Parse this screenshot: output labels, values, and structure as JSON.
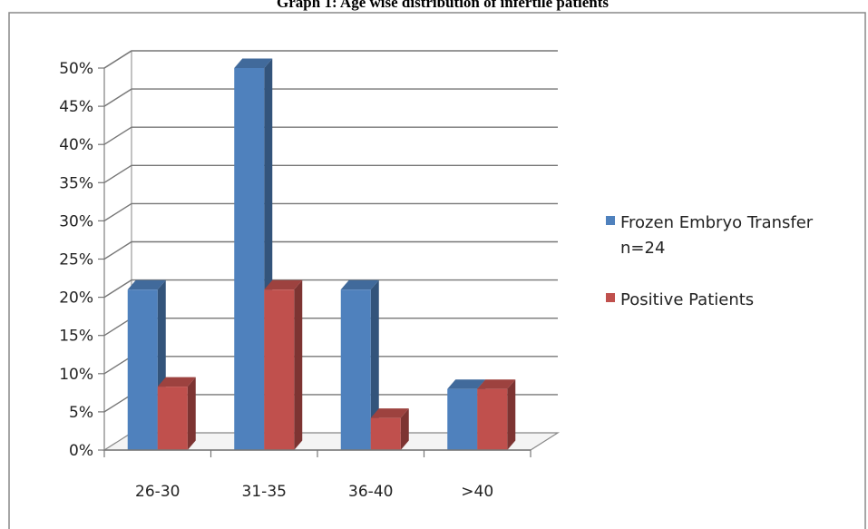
{
  "chart_data": {
    "type": "bar",
    "title": "Graph 1: Age wise distribution of infertile patients",
    "categories": [
      "26-30",
      "31-35",
      "36-40",
      ">40"
    ],
    "series": [
      {
        "name": "Frozen Embryo Transfer n=24",
        "name_lines": [
          "Frozen Embryo Transfer",
          "n=24"
        ],
        "values": [
          21,
          50,
          21,
          8
        ],
        "color": "#4f81bd"
      },
      {
        "name": "Positive Patients",
        "name_lines": [
          "Positive Patients"
        ],
        "values": [
          8.3,
          21,
          4.2,
          8
        ],
        "color": "#c0504d"
      }
    ],
    "yticks": [
      "0%",
      "5%",
      "10%",
      "15%",
      "20%",
      "25%",
      "30%",
      "35%",
      "40%",
      "45%",
      "50%"
    ],
    "ylim": [
      0,
      50
    ],
    "xlabel": "",
    "ylabel": "",
    "grid": true,
    "legend": "right"
  }
}
